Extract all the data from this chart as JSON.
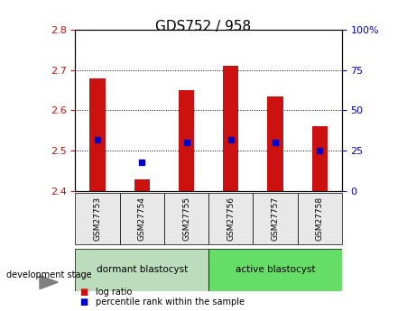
{
  "title": "GDS752 / 958",
  "samples": [
    "GSM27753",
    "GSM27754",
    "GSM27755",
    "GSM27756",
    "GSM27757",
    "GSM27758"
  ],
  "log_ratio_top": [
    2.68,
    2.43,
    2.65,
    2.71,
    2.635,
    2.56
  ],
  "log_ratio_bottom": [
    2.4,
    2.4,
    2.4,
    2.4,
    2.4,
    2.4
  ],
  "percentile_rank": [
    32,
    18,
    30,
    32,
    30,
    25
  ],
  "ylim_left": [
    2.4,
    2.8
  ],
  "ylim_right": [
    0,
    100
  ],
  "yticks_left": [
    2.4,
    2.5,
    2.6,
    2.7,
    2.8
  ],
  "yticks_right": [
    0,
    25,
    50,
    75,
    100
  ],
  "ytick_right_labels": [
    "0",
    "25",
    "50",
    "75",
    "100%"
  ],
  "bar_color": "#cc1111",
  "point_color": "#0000cc",
  "bar_width": 0.35,
  "group1_label": "dormant blastocyst",
  "group2_label": "active blastocyst",
  "group1_color": "#bbddbb",
  "group2_color": "#66dd66",
  "dev_stage_label": "development stage",
  "legend_log_ratio": "log ratio",
  "legend_percentile": "percentile rank within the sample",
  "axis_bg_color": "#e8e8e8",
  "grid_color": "black",
  "title_fontsize": 11,
  "tick_fontsize": 8,
  "sample_fontsize": 6.5,
  "group_fontsize": 7.5
}
